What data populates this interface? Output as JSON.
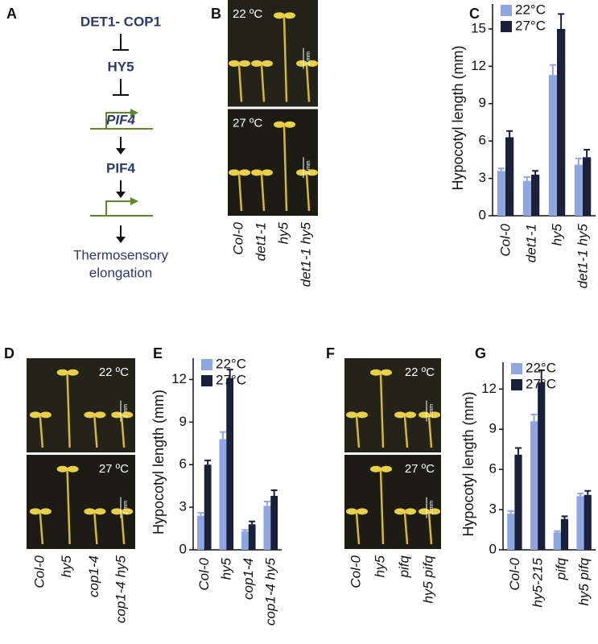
{
  "panel_labels": [
    "A",
    "B",
    "C",
    "D",
    "E",
    "F",
    "G"
  ],
  "diagram": {
    "nodes": [
      "DET1- COP1",
      "HY5",
      "PIF4",
      "PIF4"
    ],
    "output": [
      "Thermosensory",
      "elongation"
    ]
  },
  "photos": [
    {
      "conditions": [
        "22 ºC",
        "27 ºC"
      ],
      "scale": "2 mm",
      "labels": [
        "Col-0",
        "det1-1",
        "hy5",
        "det1-1 hy5"
      ]
    },
    {
      "conditions": [
        "22 ºC",
        "27 ºC"
      ],
      "scale": "2 mm",
      "labels": [
        "Col-0",
        "hy5",
        "cop1-4",
        "cop1-4 hy5"
      ]
    },
    {
      "conditions": [
        "22 ºC",
        "27 ºC"
      ],
      "scale": "2 mm",
      "labels": [
        "Col-0",
        "hy5",
        "pifq",
        "hy5 pifq"
      ]
    }
  ],
  "chart_data": [
    {
      "type": "bar",
      "y_label": "Hypocotyl length (mm)",
      "categories": [
        "Col-0",
        "det1-1",
        "hy5",
        "det1-1 hy5"
      ],
      "series": [
        {
          "name": "22°C",
          "color": "#8fa6e0",
          "values": [
            3.6,
            2.8,
            11.3,
            4.1
          ],
          "errors": [
            0.2,
            0.3,
            0.8,
            0.5
          ]
        },
        {
          "name": "27°C",
          "color": "#1a1f3a",
          "values": [
            6.3,
            3.3,
            15.0,
            4.7
          ],
          "errors": [
            0.5,
            0.3,
            1.2,
            0.6
          ]
        }
      ],
      "ylim": [
        0,
        17
      ],
      "yticks": [
        0,
        3,
        6,
        9,
        12,
        15
      ]
    },
    {
      "type": "bar",
      "y_label": "Hypocotyl length (mm)",
      "categories": [
        "Col-0",
        "hy5",
        "cop1-4",
        "cop1-4 hy5"
      ],
      "series": [
        {
          "name": "22°C",
          "color": "#8fa6e0",
          "values": [
            2.4,
            7.8,
            1.3,
            3.1
          ],
          "errors": [
            0.2,
            0.5,
            0.1,
            0.3
          ]
        },
        {
          "name": "27°C",
          "color": "#1a1f3a",
          "values": [
            6.0,
            12.1,
            1.8,
            3.8
          ],
          "errors": [
            0.3,
            0.6,
            0.2,
            0.4
          ]
        }
      ],
      "ylim": [
        0,
        13.5
      ],
      "yticks": [
        0,
        3,
        6,
        9,
        12
      ]
    },
    {
      "type": "bar",
      "y_label": "Hypocotyl length (mm)",
      "categories": [
        "Col-0",
        "hy5-215",
        "pifq",
        "hy5 pifq"
      ],
      "series": [
        {
          "name": "22°C",
          "color": "#8fa6e0",
          "values": [
            2.7,
            9.6,
            1.3,
            4.0
          ],
          "errors": [
            0.2,
            0.5,
            0.1,
            0.2
          ]
        },
        {
          "name": "27°C",
          "color": "#1a1f3a",
          "values": [
            7.1,
            12.5,
            2.3,
            4.1
          ],
          "errors": [
            0.5,
            0.9,
            0.2,
            0.3
          ]
        }
      ],
      "ylim": [
        0,
        14
      ],
      "yticks": [
        0,
        3,
        6,
        9,
        12
      ]
    }
  ]
}
